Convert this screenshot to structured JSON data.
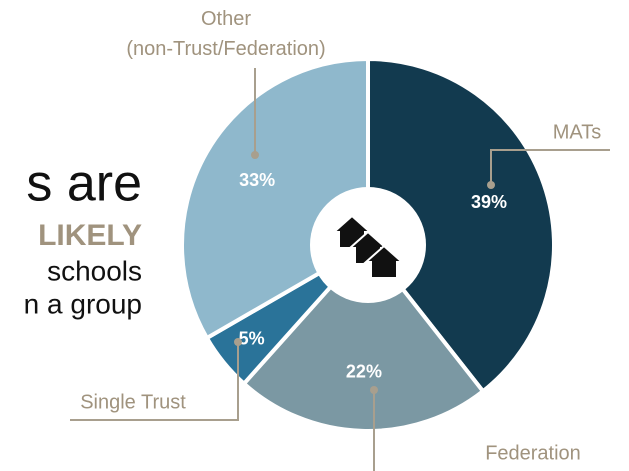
{
  "chart_data": {
    "type": "donut",
    "intro_text": [
      "s are",
      "LIKELY",
      "schools",
      "n a group"
    ],
    "series": [
      {
        "name": "MATs",
        "values": [
          39
        ],
        "value_labels": [
          "39%"
        ],
        "color": "#123a4f"
      },
      {
        "name": "Federation",
        "values": [
          22
        ],
        "value_labels": [
          "22%"
        ],
        "color": "#7b98a3"
      },
      {
        "name": "Single Trust",
        "values": [
          5
        ],
        "value_labels": [
          "5%"
        ],
        "color": "#2a7399"
      },
      {
        "name": "Other\n(non-Trust/Federation)",
        "values": [
          33
        ],
        "value_labels": [
          "33%"
        ],
        "color": "#8fb8cc"
      }
    ]
  }
}
